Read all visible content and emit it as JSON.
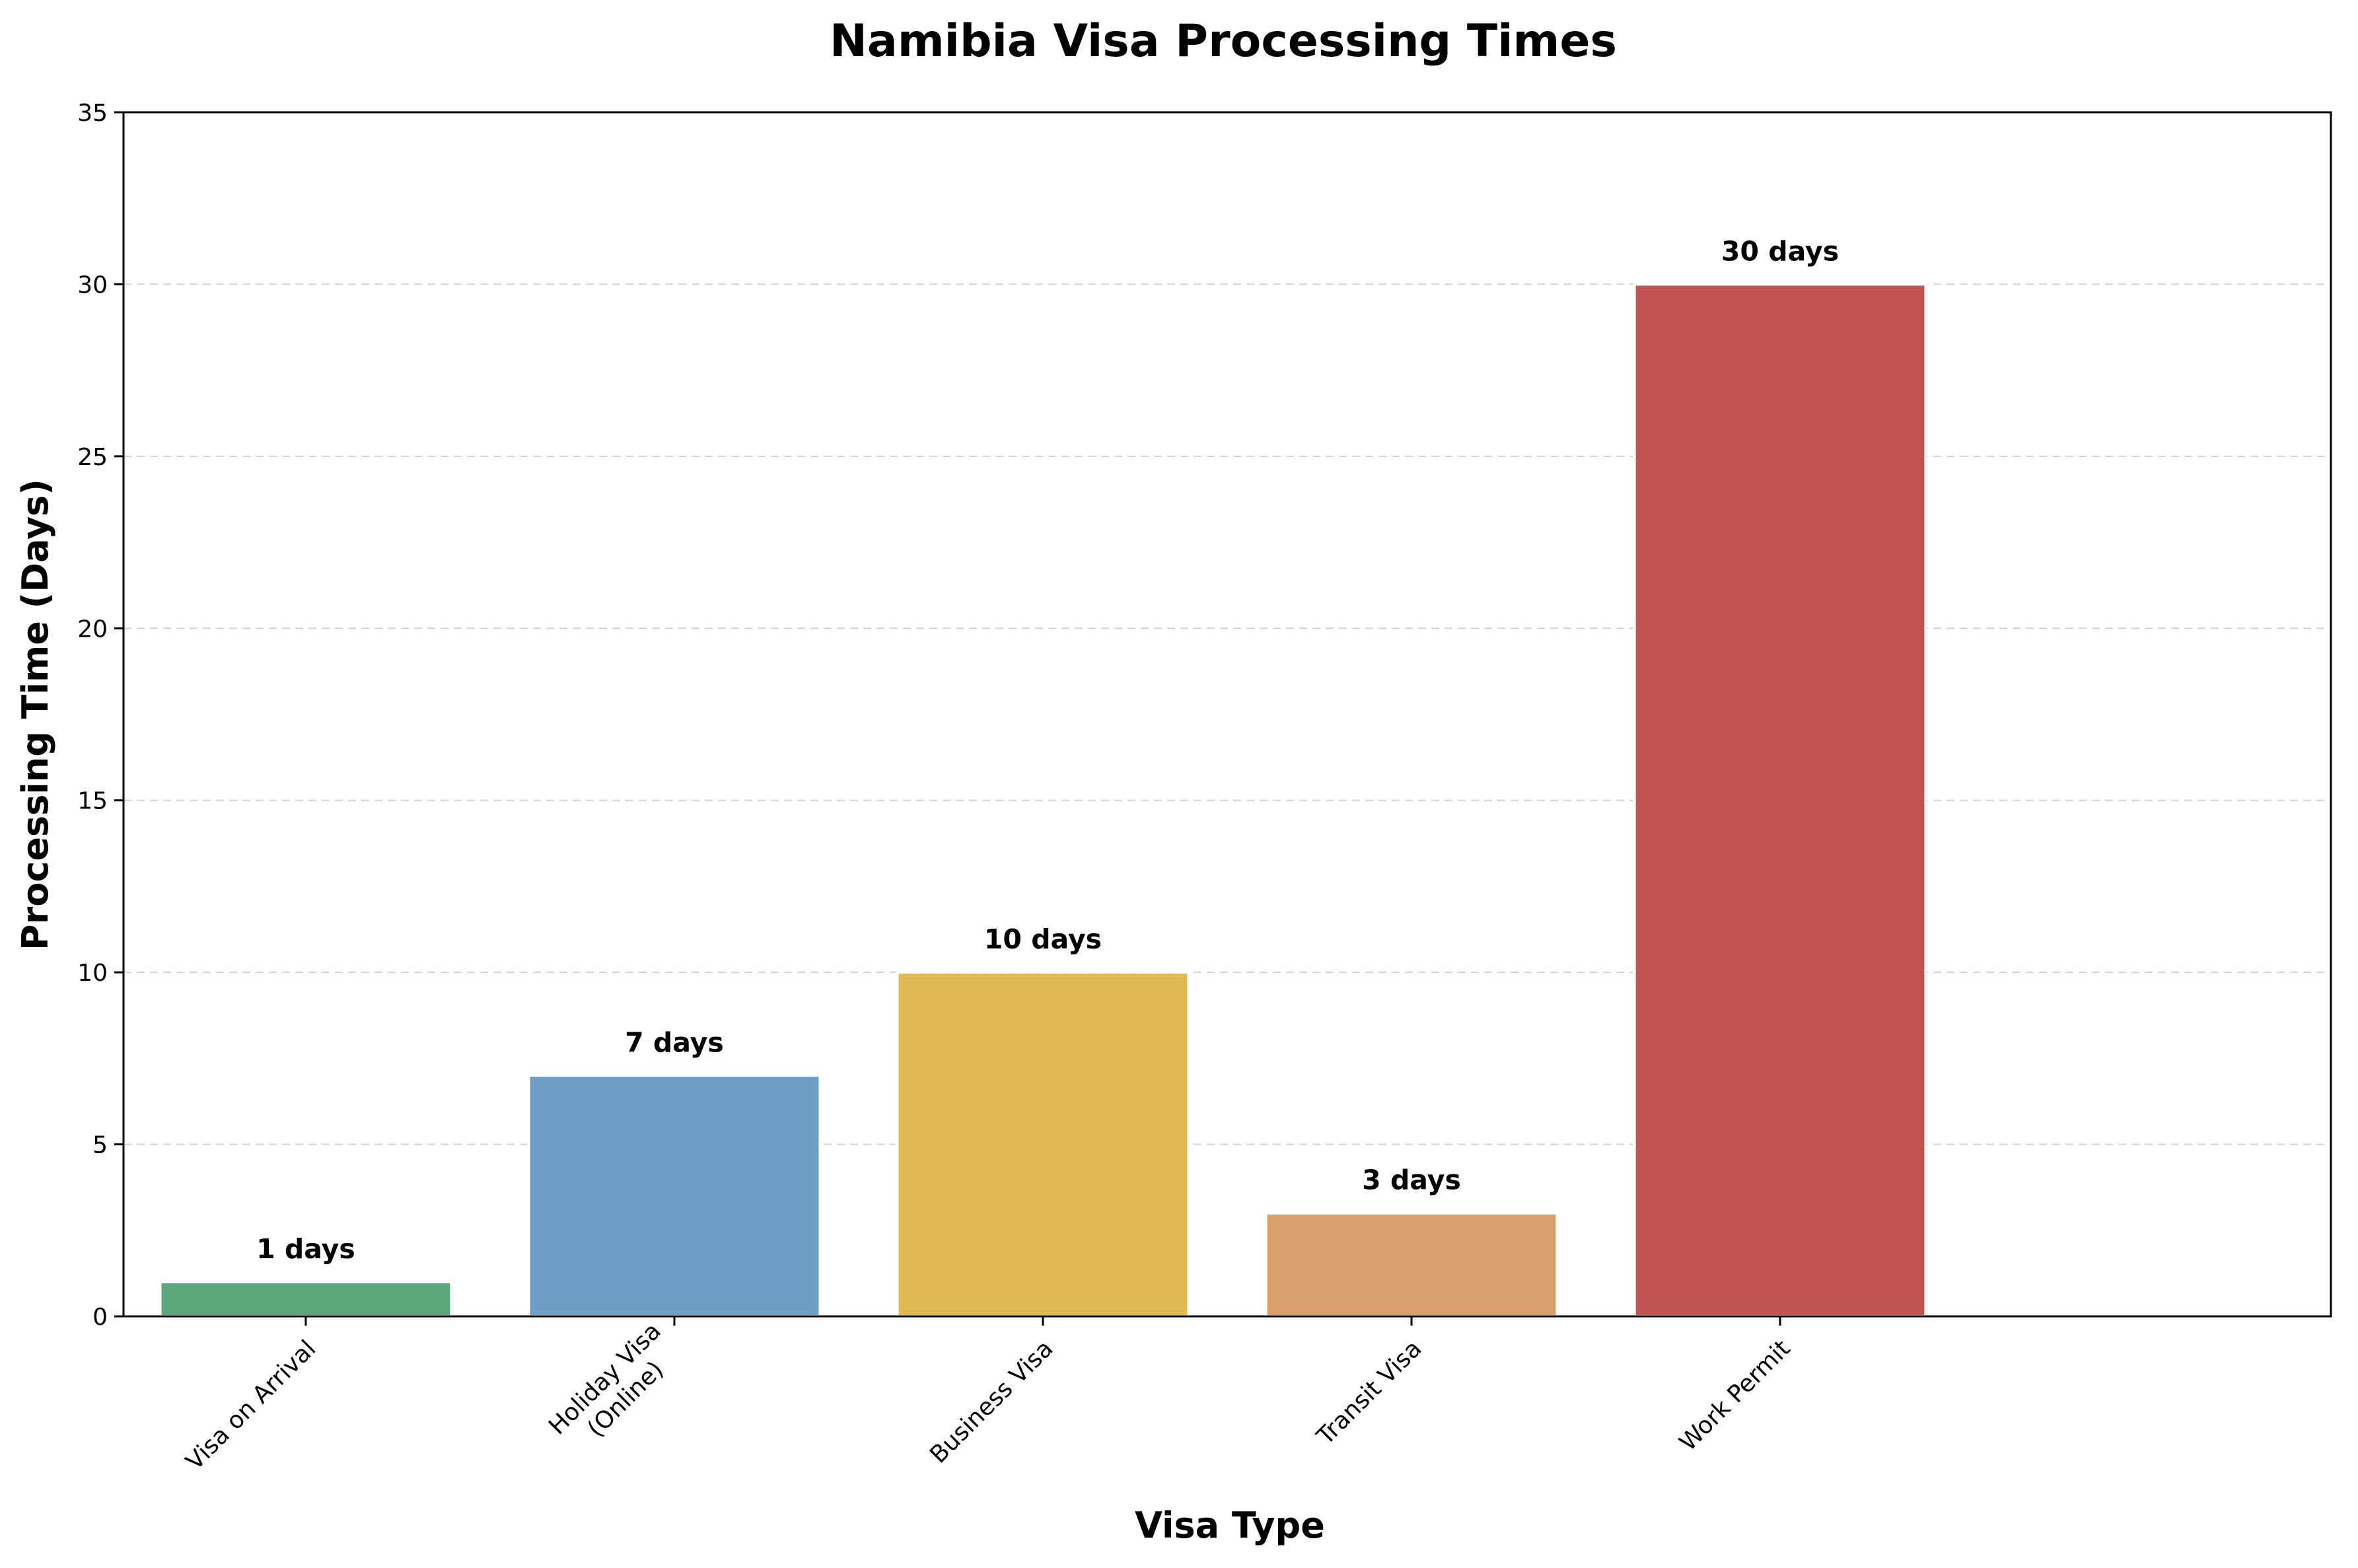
{
  "chart_data": {
    "type": "bar",
    "title": "Namibia Visa Processing Times",
    "xlabel": "Visa Type",
    "ylabel": "Processing Time (Days)",
    "ylim": [
      0,
      35
    ],
    "yticks": [
      0,
      5,
      10,
      15,
      20,
      25,
      30,
      35
    ],
    "grid": "horizontal dashed",
    "categories": [
      "Visa on Arrival",
      "Holiday Visa\n(Online)",
      "Business Visa",
      "Transit Visa",
      "Work Permit"
    ],
    "values": [
      1,
      7,
      10,
      3,
      30
    ],
    "value_labels": [
      "1 days",
      "7 days",
      "10 days",
      "3 days",
      "30 days"
    ],
    "colors": [
      "#56a476",
      "#6a9bc5",
      "#e1b74e",
      "#d79c67",
      "#c24f4f"
    ]
  }
}
